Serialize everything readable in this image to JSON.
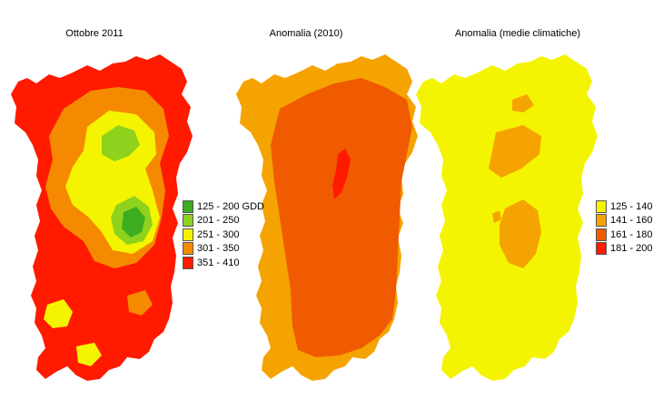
{
  "panels": [
    {
      "title": "Ottobre 2011",
      "legend": [
        {
          "label": "125 - 200 GDD",
          "color": "#3cad1f"
        },
        {
          "label": "201 - 250",
          "color": "#8fd21e"
        },
        {
          "label": "251 - 300",
          "color": "#f4f400"
        },
        {
          "label": "301 - 350",
          "color": "#f58a00"
        },
        {
          "label": "351 - 410",
          "color": "#ff1a00"
        }
      ]
    },
    {
      "title": "Anomalia (2010)",
      "legend": []
    },
    {
      "title": "Anomalia (medie climatiche)",
      "legend": [
        {
          "label": "125 - 140",
          "color": "#f4f400"
        },
        {
          "label": "141 - 160",
          "color": "#f5a300"
        },
        {
          "label": "161 - 180",
          "color": "#f05a00"
        },
        {
          "label": "181 - 200",
          "color": "#ff1a00"
        }
      ]
    }
  ]
}
